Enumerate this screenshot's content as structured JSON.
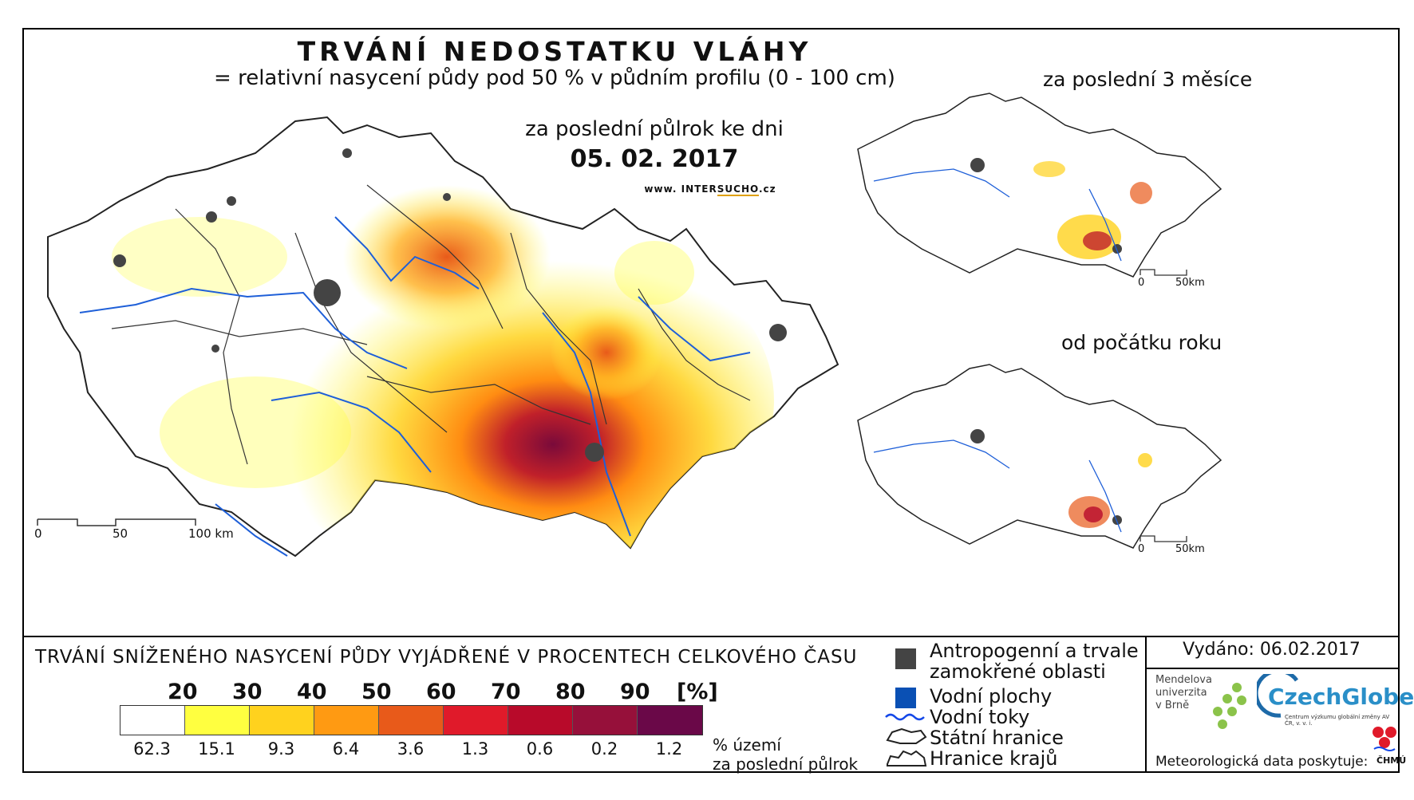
{
  "map": {
    "title": "TRVÁNÍ NEDOSTATKU VLÁHY",
    "subtitle": "= relativní nasycení půdy pod 50 % v půdním profilu (0 - 100 cm)",
    "period": "za poslední půlrok ke dni",
    "date": "05. 02. 2017",
    "website_prefix": "www. INTER",
    "website_highlight": "SUCHO",
    "website_suffix": ".cz",
    "main_scale": [
      "0",
      "50",
      "100 km"
    ]
  },
  "insets": [
    {
      "title": "za poslední 3 měsíce",
      "scale": [
        "0",
        "50km"
      ]
    },
    {
      "title": "od počátku roku",
      "scale": [
        "0",
        "50km"
      ]
    }
  ],
  "legend": {
    "title": "TRVÁNÍ SNÍŽENÉHO NASYCENÍ PŮDY VYJÁDŘENÉ V PROCENTECH CELKOVÉHO ČASU",
    "thresholds": [
      "20",
      "30",
      "40",
      "50",
      "60",
      "70",
      "80",
      "90",
      "[%]"
    ],
    "colors": [
      "#ffffff",
      "#ffff40",
      "#ffd21e",
      "#ff9a12",
      "#e85a1a",
      "#e01a2a",
      "#b80a2a",
      "#96103a",
      "#6a0848"
    ],
    "percentages": [
      "62.3",
      "15.1",
      "9.3",
      "6.4",
      "3.6",
      "1.3",
      "0.6",
      "0.2",
      "1.2"
    ],
    "note_line1": "% území",
    "note_line2": "za poslední půlrok",
    "symbols": [
      {
        "label": "Antropogenní a trvale zamokřené oblasti",
        "icon": "dark-square",
        "color": "#444444"
      },
      {
        "label": "Vodní plochy",
        "icon": "blue-square",
        "color": "#0a50b4"
      },
      {
        "label": "Vodní toky",
        "icon": "river-line",
        "color": "#1448e8"
      },
      {
        "label": "Státní hranice",
        "icon": "border-outline"
      },
      {
        "label": "Hranice krajů",
        "icon": "region-outline"
      }
    ]
  },
  "footer": {
    "issued": "Vydáno: 06.02.2017",
    "mendel": [
      "Mendelova",
      "univerzita",
      "v Brně"
    ],
    "czechglobe": "CzechGlobe",
    "czechglobe_sub": "Centrum výzkumu globální změny AV ČR, v. v. i.",
    "meteo": "Meteorologická data poskytuje:",
    "chmu": "ČHMÚ"
  }
}
